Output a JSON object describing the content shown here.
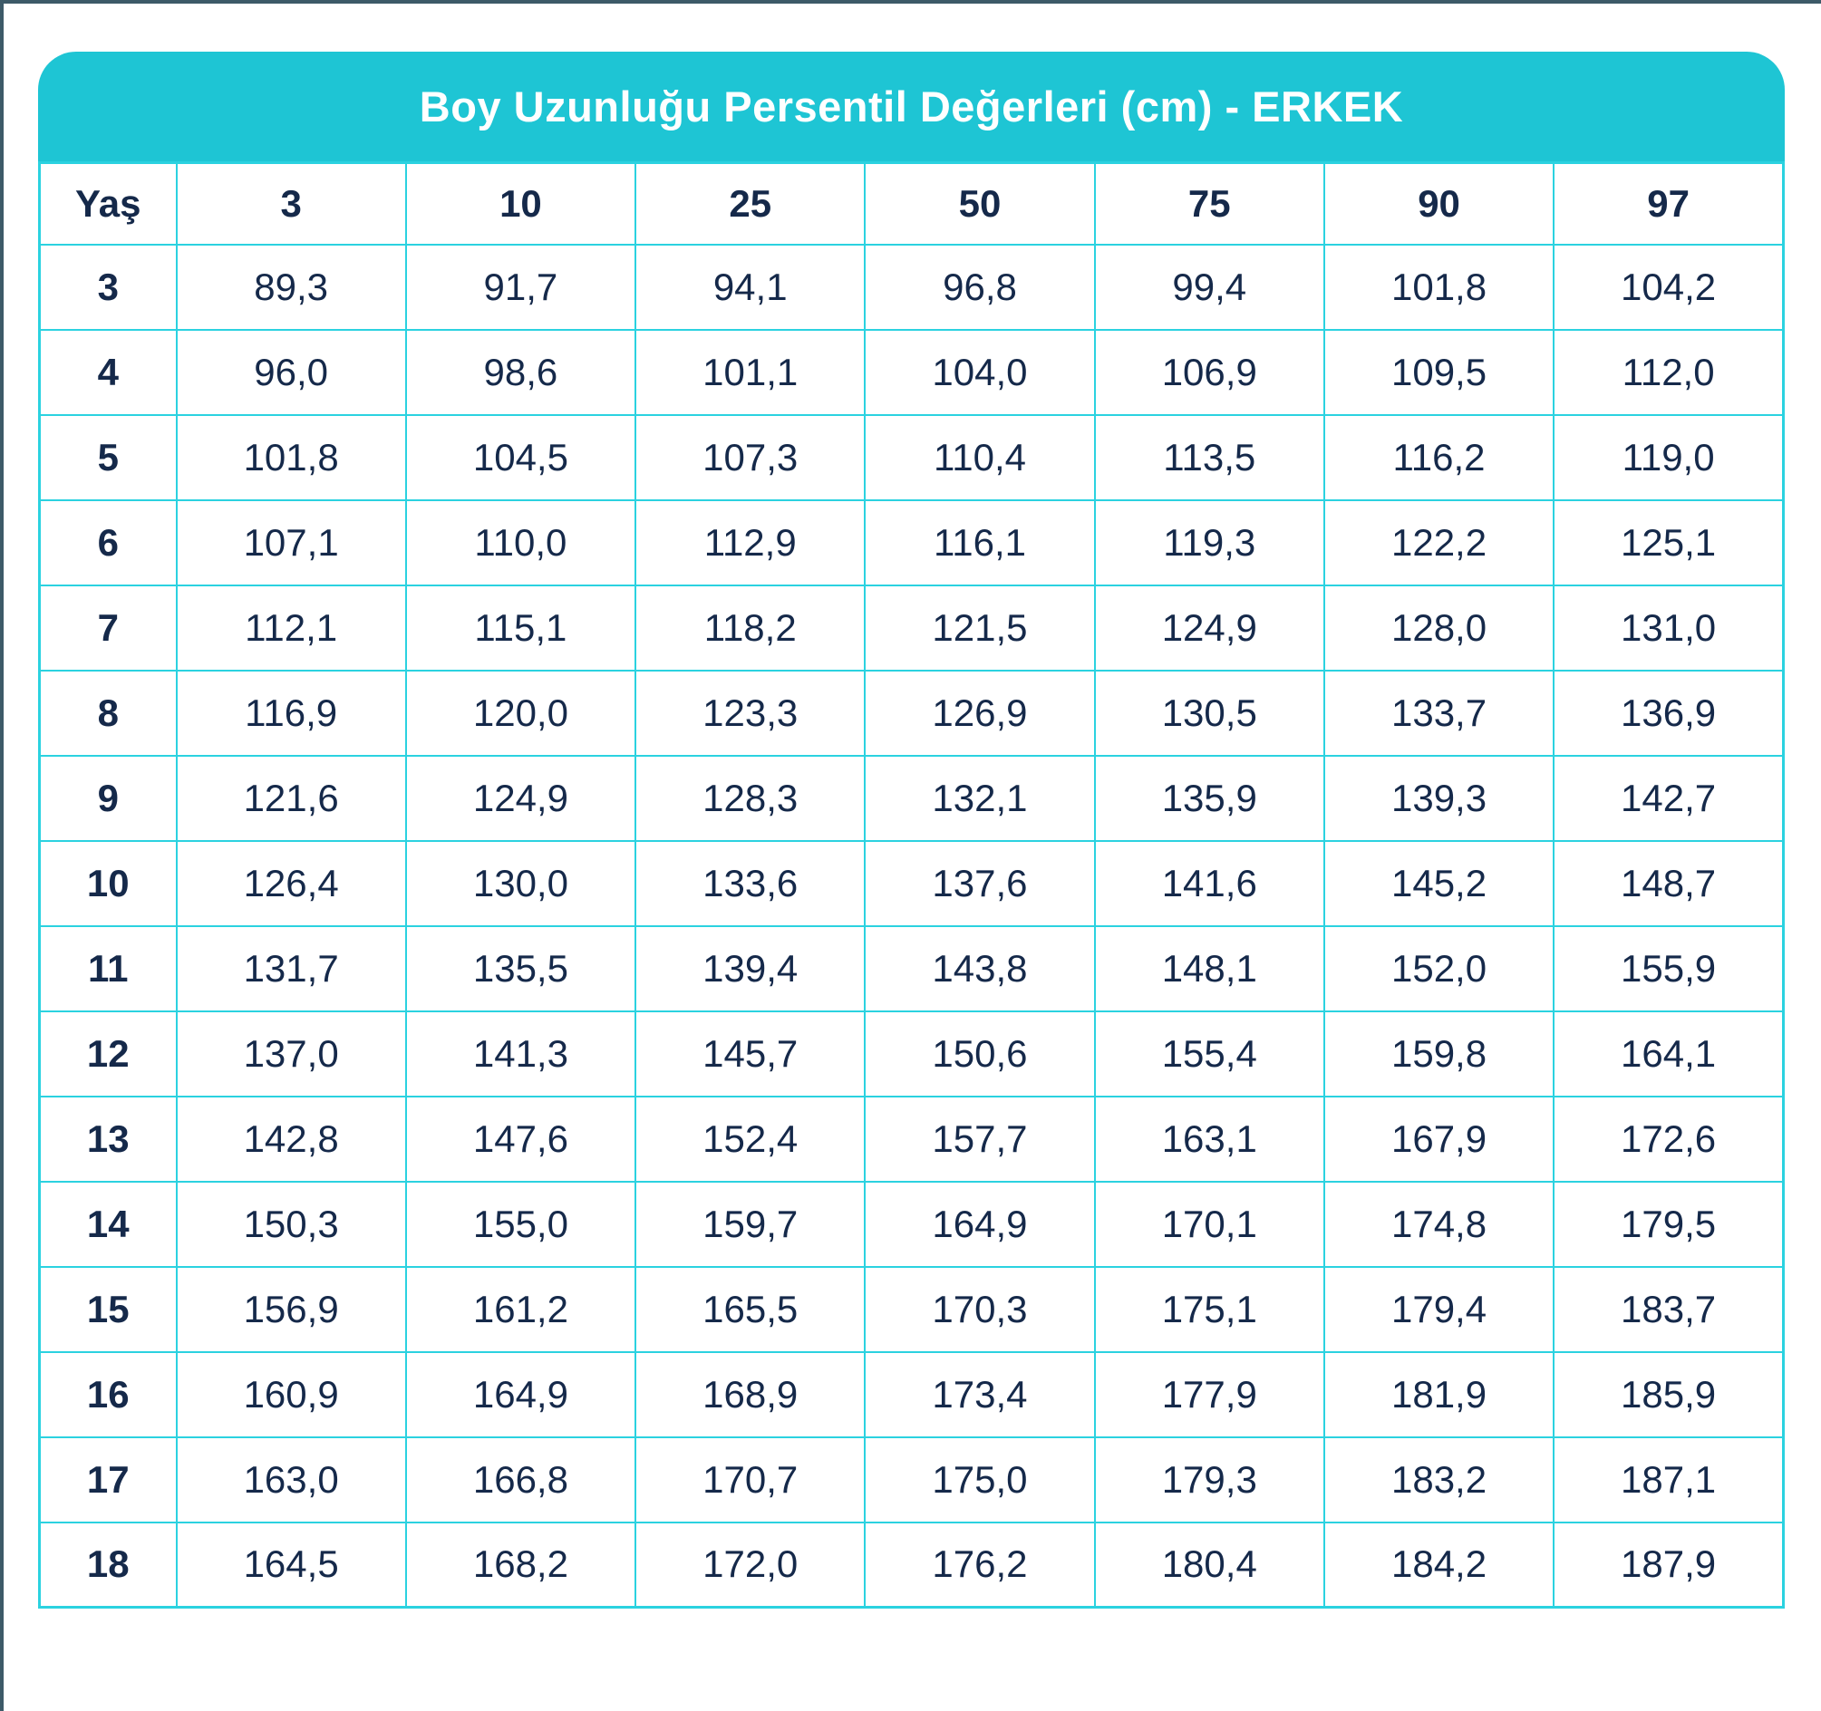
{
  "header": {
    "title": "Boy Uzunluğu Persentil Değerleri (cm) - ERKEK"
  },
  "table": {
    "age_label": "Yaş",
    "percentiles": [
      "3",
      "10",
      "25",
      "50",
      "75",
      "90",
      "97"
    ],
    "rows": [
      {
        "age": "3",
        "values": [
          "89,3",
          "91,7",
          "94,1",
          "96,8",
          "99,4",
          "101,8",
          "104,2"
        ]
      },
      {
        "age": "4",
        "values": [
          "96,0",
          "98,6",
          "101,1",
          "104,0",
          "106,9",
          "109,5",
          "112,0"
        ]
      },
      {
        "age": "5",
        "values": [
          "101,8",
          "104,5",
          "107,3",
          "110,4",
          "113,5",
          "116,2",
          "119,0"
        ]
      },
      {
        "age": "6",
        "values": [
          "107,1",
          "110,0",
          "112,9",
          "116,1",
          "119,3",
          "122,2",
          "125,1"
        ]
      },
      {
        "age": "7",
        "values": [
          "112,1",
          "115,1",
          "118,2",
          "121,5",
          "124,9",
          "128,0",
          "131,0"
        ]
      },
      {
        "age": "8",
        "values": [
          "116,9",
          "120,0",
          "123,3",
          "126,9",
          "130,5",
          "133,7",
          "136,9"
        ]
      },
      {
        "age": "9",
        "values": [
          "121,6",
          "124,9",
          "128,3",
          "132,1",
          "135,9",
          "139,3",
          "142,7"
        ]
      },
      {
        "age": "10",
        "values": [
          "126,4",
          "130,0",
          "133,6",
          "137,6",
          "141,6",
          "145,2",
          "148,7"
        ]
      },
      {
        "age": "11",
        "values": [
          "131,7",
          "135,5",
          "139,4",
          "143,8",
          "148,1",
          "152,0",
          "155,9"
        ]
      },
      {
        "age": "12",
        "values": [
          "137,0",
          "141,3",
          "145,7",
          "150,6",
          "155,4",
          "159,8",
          "164,1"
        ]
      },
      {
        "age": "13",
        "values": [
          "142,8",
          "147,6",
          "152,4",
          "157,7",
          "163,1",
          "167,9",
          "172,6"
        ]
      },
      {
        "age": "14",
        "values": [
          "150,3",
          "155,0",
          "159,7",
          "164,9",
          "170,1",
          "174,8",
          "179,5"
        ]
      },
      {
        "age": "15",
        "values": [
          "156,9",
          "161,2",
          "165,5",
          "170,3",
          "175,1",
          "179,4",
          "183,7"
        ]
      },
      {
        "age": "16",
        "values": [
          "160,9",
          "164,9",
          "168,9",
          "173,4",
          "177,9",
          "181,9",
          "185,9"
        ]
      },
      {
        "age": "17",
        "values": [
          "163,0",
          "166,8",
          "170,7",
          "175,0",
          "179,3",
          "183,2",
          "187,1"
        ]
      },
      {
        "age": "18",
        "values": [
          "164,5",
          "168,2",
          "172,0",
          "176,2",
          "180,4",
          "184,2",
          "187,9"
        ]
      }
    ]
  },
  "colors": {
    "accent": "#1ec5d4",
    "border": "#2bd2e0",
    "text": "#15294a",
    "edge": "#3d5a68",
    "title_text": "#ffffff"
  },
  "chart_data": {
    "type": "table",
    "title": "Boy Uzunluğu Persentil Değerleri (cm) - ERKEK",
    "row_header": "Yaş",
    "columns": [
      "3",
      "10",
      "25",
      "50",
      "75",
      "90",
      "97"
    ],
    "ages": [
      3,
      4,
      5,
      6,
      7,
      8,
      9,
      10,
      11,
      12,
      13,
      14,
      15,
      16,
      17,
      18
    ],
    "series": [
      {
        "name": "3",
        "values": [
          89.3,
          96.0,
          101.8,
          107.1,
          112.1,
          116.9,
          121.6,
          126.4,
          131.7,
          137.0,
          142.8,
          150.3,
          156.9,
          160.9,
          163.0,
          164.5
        ]
      },
      {
        "name": "10",
        "values": [
          91.7,
          98.6,
          104.5,
          110.0,
          115.1,
          120.0,
          124.9,
          130.0,
          135.5,
          141.3,
          147.6,
          155.0,
          161.2,
          164.9,
          166.8,
          168.2
        ]
      },
      {
        "name": "25",
        "values": [
          94.1,
          101.1,
          107.3,
          112.9,
          118.2,
          123.3,
          128.3,
          133.6,
          139.4,
          145.7,
          152.4,
          159.7,
          165.5,
          168.9,
          170.7,
          172.0
        ]
      },
      {
        "name": "50",
        "values": [
          96.8,
          104.0,
          110.4,
          116.1,
          121.5,
          126.9,
          132.1,
          137.6,
          143.8,
          150.6,
          157.7,
          164.9,
          170.3,
          173.4,
          175.0,
          176.2
        ]
      },
      {
        "name": "75",
        "values": [
          99.4,
          106.9,
          113.5,
          119.3,
          124.9,
          130.5,
          135.9,
          141.6,
          148.1,
          155.4,
          163.1,
          170.1,
          175.1,
          177.9,
          179.3,
          180.4
        ]
      },
      {
        "name": "90",
        "values": [
          101.8,
          109.5,
          116.2,
          122.2,
          128.0,
          133.7,
          139.3,
          145.2,
          152.0,
          159.8,
          167.9,
          174.8,
          179.4,
          181.9,
          183.2,
          184.2
        ]
      },
      {
        "name": "97",
        "values": [
          104.2,
          112.0,
          119.0,
          125.1,
          131.0,
          136.9,
          142.7,
          148.7,
          155.9,
          164.1,
          172.6,
          179.5,
          183.7,
          185.9,
          187.1,
          187.9
        ]
      }
    ]
  }
}
